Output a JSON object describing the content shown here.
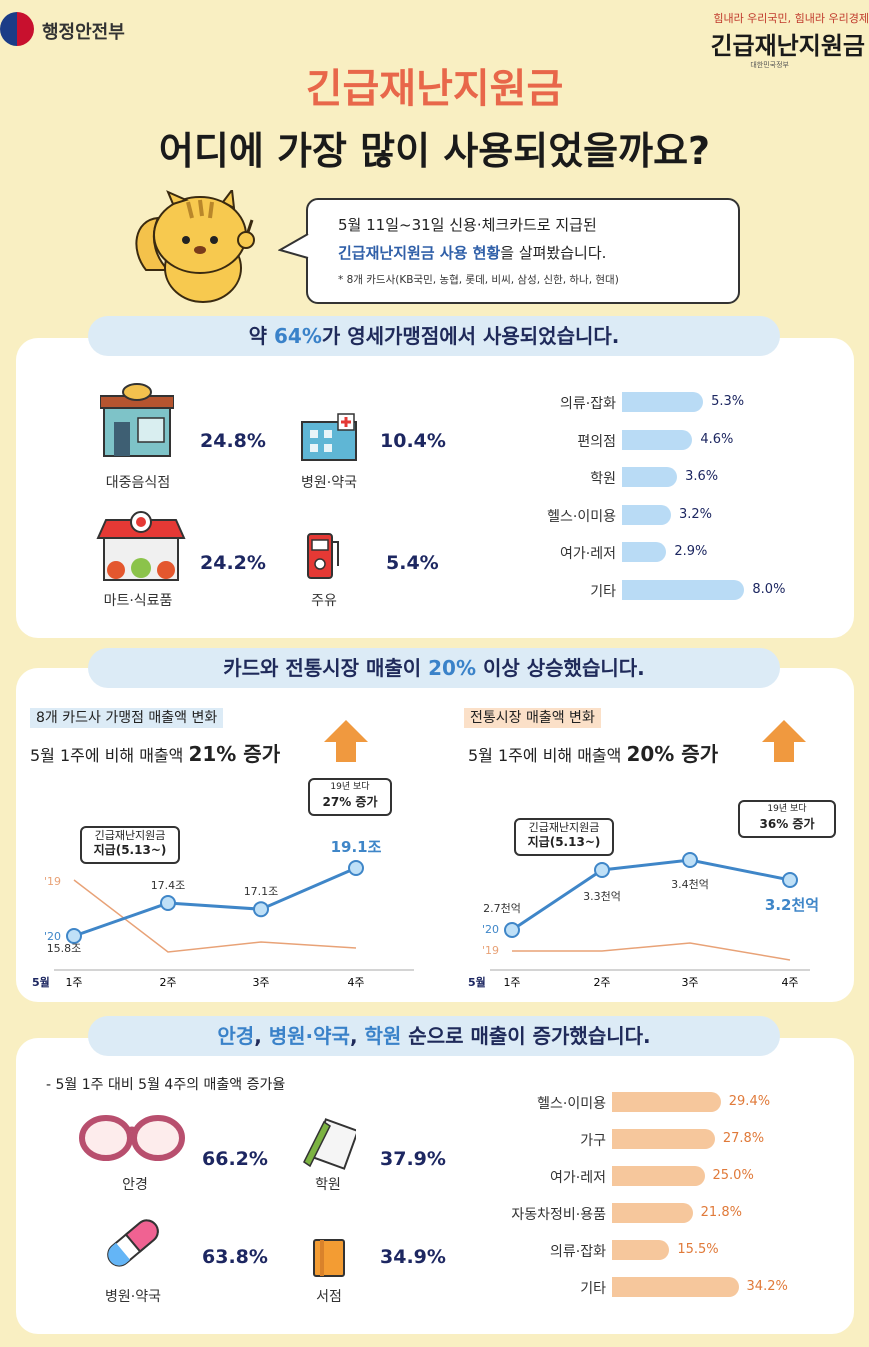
{
  "header": {
    "ministry": "행정안전부",
    "slogan": "힘내라 우리국민, 힘내라 우리경제",
    "brand": "긴급재난지원금",
    "brand_sub": "대한민국정부"
  },
  "title": {
    "line1": "긴급재난지원금",
    "line2": "어디에 가장 많이 사용되었을까요?"
  },
  "intro": {
    "line1": "5월 11일~31일 신용·체크카드로 지급된",
    "line2_hl": "긴급재난지원금 사용 현황",
    "line2_rest": "을 살펴봤습니다.",
    "note": "* 8개 카드사(KB국민, 농협, 롯데, 비씨, 삼성, 신한, 하나, 현대)"
  },
  "section1": {
    "head_pre": "약 ",
    "head_hl": "64%",
    "head_post": "가 영세가맹점에서 사용되었습니다.",
    "icons": [
      {
        "label": "대중음식점",
        "value": "24.8%"
      },
      {
        "label": "병원·약국",
        "value": "10.4%"
      },
      {
        "label": "마트·식료품",
        "value": "24.2%"
      },
      {
        "label": "주유",
        "value": "5.4%"
      }
    ],
    "bars": [
      {
        "label": "의류·잡화",
        "value": 5.3,
        "text": "5.3%"
      },
      {
        "label": "편의점",
        "value": 4.6,
        "text": "4.6%"
      },
      {
        "label": "학원",
        "value": 3.6,
        "text": "3.6%"
      },
      {
        "label": "헬스·이미용",
        "value": 3.2,
        "text": "3.2%"
      },
      {
        "label": "여가·레저",
        "value": 2.9,
        "text": "2.9%"
      },
      {
        "label": "기타",
        "value": 8.0,
        "text": "8.0%"
      }
    ],
    "bar_color": "#b9dbf5"
  },
  "section2": {
    "head_pre": "카드와 전통시장 매출이 ",
    "head_hl": "20%",
    "head_post": " 이상 상승했습니다.",
    "left": {
      "tag": "8개 카드사 가맹점 매출액 변화",
      "desc_pre": "5월 1주에 비해 매출액 ",
      "desc_hl": "21% 증가",
      "callout1": [
        "긴급재난지원금",
        "지급(5.13~)"
      ],
      "callout2": [
        "19년 보다",
        "27% 증가"
      ],
      "series_label_19": "'19",
      "series_label_20": "'20",
      "month_label": "5월",
      "weeks": [
        "1주",
        "2주",
        "3주",
        "4주"
      ],
      "values_2020": [
        15.8,
        17.4,
        17.1,
        19.1
      ],
      "value_labels": [
        "15.8조",
        "17.4조",
        "17.1조",
        "19.1조"
      ]
    },
    "right": {
      "tag": "전통시장 매출액 변화",
      "desc_pre": "5월 1주에 비해 매출액 ",
      "desc_hl": "20% 증가",
      "callout1": [
        "긴급재난지원금",
        "지급(5.13~)"
      ],
      "callout2": [
        "19년 보다",
        "36% 증가"
      ],
      "series_label_19": "'19",
      "series_label_20": "'20",
      "month_label": "5월",
      "weeks": [
        "1주",
        "2주",
        "3주",
        "4주"
      ],
      "values_2020": [
        2.7,
        3.3,
        3.4,
        3.2
      ],
      "value_labels": [
        "2.7천억",
        "3.3천억",
        "3.4천억",
        "3.2천억"
      ]
    },
    "arrow_color": "#f0993f",
    "line_color": "#3f86c8",
    "line19_color": "#e8a277"
  },
  "section3": {
    "head_p1": "안경",
    "head_p2": ", ",
    "head_p3": "병원·약국",
    "head_p4": ", ",
    "head_p5": "학원",
    "head_p6": " 순으로 매출이 증가했습니다.",
    "note": "- 5월 1주 대비 5월 4주의 매출액 증가율",
    "icons": [
      {
        "label": "안경",
        "value": "66.2%"
      },
      {
        "label": "학원",
        "value": "37.9%"
      },
      {
        "label": "병원·약국",
        "value": "63.8%"
      },
      {
        "label": "서점",
        "value": "34.9%"
      }
    ],
    "bars": [
      {
        "label": "헬스·이미용",
        "value": 29.4,
        "text": "29.4%"
      },
      {
        "label": "가구",
        "value": 27.8,
        "text": "27.8%"
      },
      {
        "label": "여가·레저",
        "value": 25.0,
        "text": "25.0%"
      },
      {
        "label": "자동차정비·용품",
        "value": 21.8,
        "text": "21.8%"
      },
      {
        "label": "의류·잡화",
        "value": 15.5,
        "text": "15.5%"
      },
      {
        "label": "기타",
        "value": 34.2,
        "text": "34.2%"
      }
    ],
    "bar_color": "#f6c79c"
  }
}
